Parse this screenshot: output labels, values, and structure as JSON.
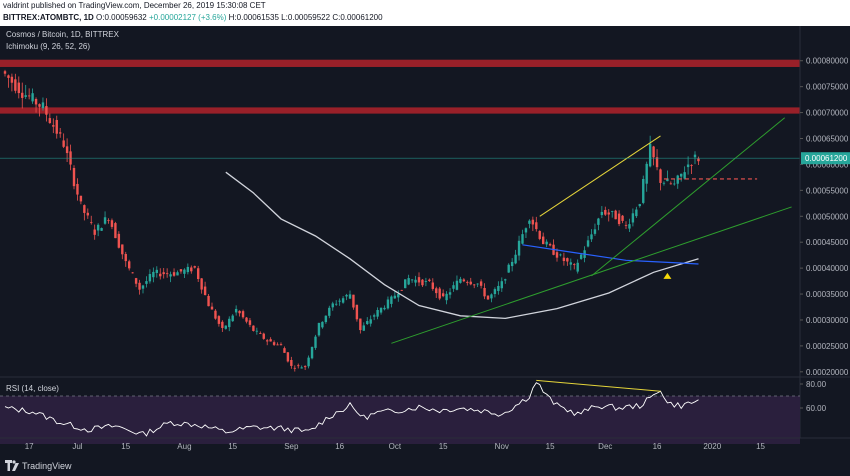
{
  "header": {
    "published": "valdrint published on TradingView.com, December 26, 2019 15:30:08 CET",
    "symbol": "BITTREX:ATOMBTC, 1D",
    "open": "O:0.00059632",
    "high": "H:0.00061535",
    "low": "L:0.00059522",
    "close": "C:0.00061200",
    "change": "+0.00002127 (+3.6%)"
  },
  "overlay": {
    "title": "Cosmos / Bitcoin, 1D, BITTREX",
    "indicator": "Ichimoku (9, 26, 52, 26)"
  },
  "footer": {
    "brand": "TradingView"
  },
  "colors": {
    "background": "#131722",
    "up": "#26a69a",
    "down": "#ef5350",
    "resistance_zone": "#b2222a",
    "ma_line": "#d1d4dc",
    "baseline": "#2962ff",
    "triangle_lines": "#2e9e2e",
    "wedge_line": "#e5d53a",
    "rsi_line": "#ffffff",
    "rsi_band": "#2a1f3d",
    "last_price_tag": "#26a69a",
    "signal_arrow": "#f5d90a"
  },
  "chart_data": [
    {
      "type": "candlestick",
      "title": "Cosmos / Bitcoin, 1D, BITTREX",
      "ylim": [
        0.00019,
        0.00084
      ],
      "y_ticks": [
        "0.00080000",
        "0.00075000",
        "0.00070000",
        "0.00065000",
        "0.00060000",
        "0.00055000",
        "0.00050000",
        "0.00045000",
        "0.00040000",
        "0.00035000",
        "0.00030000",
        "0.00025000",
        "0.00020000"
      ],
      "y_tick_values": [
        0.0008,
        0.00075,
        0.0007,
        0.00065,
        0.0006,
        0.00055,
        0.0005,
        0.00045,
        0.0004,
        0.00035,
        0.0003,
        0.00025,
        0.0002
      ],
      "x_ticks": [
        "17",
        "Jul",
        "15",
        "Aug",
        "15",
        "Sep",
        "16",
        "Oct",
        "15",
        "Nov",
        "15",
        "Dec",
        "16",
        "2020",
        "15"
      ],
      "x_tick_days": [
        7,
        21,
        35,
        52,
        66,
        83,
        97,
        113,
        127,
        144,
        158,
        174,
        189,
        205,
        219
      ],
      "last_price": "0.00061200",
      "last_price_value": 0.000612,
      "resistance_zones": [
        [
          0.000788,
          0.000802
        ],
        [
          0.000698,
          0.00071
        ]
      ],
      "price_path": [
        [
          0,
          0.00078
        ],
        [
          6,
          0.00074
        ],
        [
          12,
          0.00071
        ],
        [
          18,
          0.00064
        ],
        [
          23,
          0.00052
        ],
        [
          27,
          0.00047
        ],
        [
          31,
          0.0005
        ],
        [
          36,
          0.00041
        ],
        [
          40,
          0.00036
        ],
        [
          44,
          0.00039
        ],
        [
          50,
          0.00039
        ],
        [
          56,
          0.0004
        ],
        [
          60,
          0.00033
        ],
        [
          64,
          0.00028
        ],
        [
          68,
          0.00032
        ],
        [
          73,
          0.00028
        ],
        [
          77,
          0.00026
        ],
        [
          81,
          0.00025
        ],
        [
          84,
          0.00021
        ],
        [
          88,
          0.00021
        ],
        [
          92,
          0.00029
        ],
        [
          96,
          0.00033
        ],
        [
          101,
          0.00035
        ],
        [
          104,
          0.00028
        ],
        [
          108,
          0.00031
        ],
        [
          113,
          0.00034
        ],
        [
          118,
          0.00038
        ],
        [
          124,
          0.00037
        ],
        [
          128,
          0.00034
        ],
        [
          133,
          0.00038
        ],
        [
          138,
          0.00037
        ],
        [
          141,
          0.00034
        ],
        [
          145,
          0.00037
        ],
        [
          149,
          0.00043
        ],
        [
          153,
          0.0005
        ],
        [
          157,
          0.00045
        ],
        [
          162,
          0.00042
        ],
        [
          166,
          0.0004
        ],
        [
          170,
          0.00045
        ],
        [
          174,
          0.00051
        ],
        [
          178,
          0.0005
        ],
        [
          181,
          0.00048
        ],
        [
          185,
          0.00053
        ],
        [
          188,
          0.00063
        ],
        [
          191,
          0.00057
        ],
        [
          195,
          0.00056
        ],
        [
          199,
          0.0006
        ],
        [
          201,
          0.000612
        ]
      ],
      "moving_average": [
        [
          64,
          0.000585
        ],
        [
          72,
          0.000545
        ],
        [
          80,
          0.000495
        ],
        [
          90,
          0.000462
        ],
        [
          100,
          0.000418
        ],
        [
          110,
          0.000368
        ],
        [
          120,
          0.000328
        ],
        [
          132,
          0.000308
        ],
        [
          145,
          0.000303
        ],
        [
          160,
          0.000322
        ],
        [
          175,
          0.000352
        ],
        [
          188,
          0.000392
        ],
        [
          201,
          0.000418
        ]
      ],
      "baseline": [
        [
          150,
          0.000445
        ],
        [
          165,
          0.00043
        ],
        [
          180,
          0.000415
        ],
        [
          195,
          0.00041
        ],
        [
          201,
          0.000408
        ]
      ],
      "trend_lines": [
        {
          "from": [
            112,
            0.000255
          ],
          "to": [
            228,
            0.000518
          ]
        },
        {
          "from": [
            170,
            0.000385
          ],
          "to": [
            226,
            0.00069
          ]
        }
      ],
      "wedge_line": {
        "from": [
          155,
          0.0005
        ],
        "to": [
          190,
          0.000655
        ]
      },
      "support_marker": {
        "from": [
          191,
          0.000572
        ],
        "to": [
          218,
          0.000572
        ]
      },
      "signal_arrow": [
        192,
        0.000385
      ]
    },
    {
      "type": "line",
      "title": "RSI (14, close)",
      "ylim": [
        35,
        85
      ],
      "y_ticks": [
        "80.00",
        "60.00"
      ],
      "y_tick_values": [
        80,
        60
      ],
      "overbought": 70,
      "oversold": 30,
      "values": [
        [
          0,
          60
        ],
        [
          8,
          57
        ],
        [
          16,
          48
        ],
        [
          24,
          42
        ],
        [
          32,
          45
        ],
        [
          40,
          38
        ],
        [
          48,
          48
        ],
        [
          56,
          46
        ],
        [
          64,
          40
        ],
        [
          72,
          44
        ],
        [
          80,
          43
        ],
        [
          88,
          40
        ],
        [
          94,
          53
        ],
        [
          100,
          62
        ],
        [
          104,
          52
        ],
        [
          108,
          56
        ],
        [
          114,
          58
        ],
        [
          120,
          61
        ],
        [
          126,
          58
        ],
        [
          132,
          60
        ],
        [
          138,
          58
        ],
        [
          144,
          55
        ],
        [
          148,
          62
        ],
        [
          152,
          70
        ],
        [
          154,
          82
        ],
        [
          157,
          70
        ],
        [
          160,
          62
        ],
        [
          166,
          55
        ],
        [
          172,
          62
        ],
        [
          178,
          60
        ],
        [
          184,
          62
        ],
        [
          188,
          70
        ],
        [
          190,
          76
        ],
        [
          192,
          64
        ],
        [
          196,
          62
        ],
        [
          201,
          66
        ]
      ],
      "divergence_line": {
        "from": [
          154,
          83
        ],
        "to": [
          190,
          74
        ]
      }
    }
  ]
}
